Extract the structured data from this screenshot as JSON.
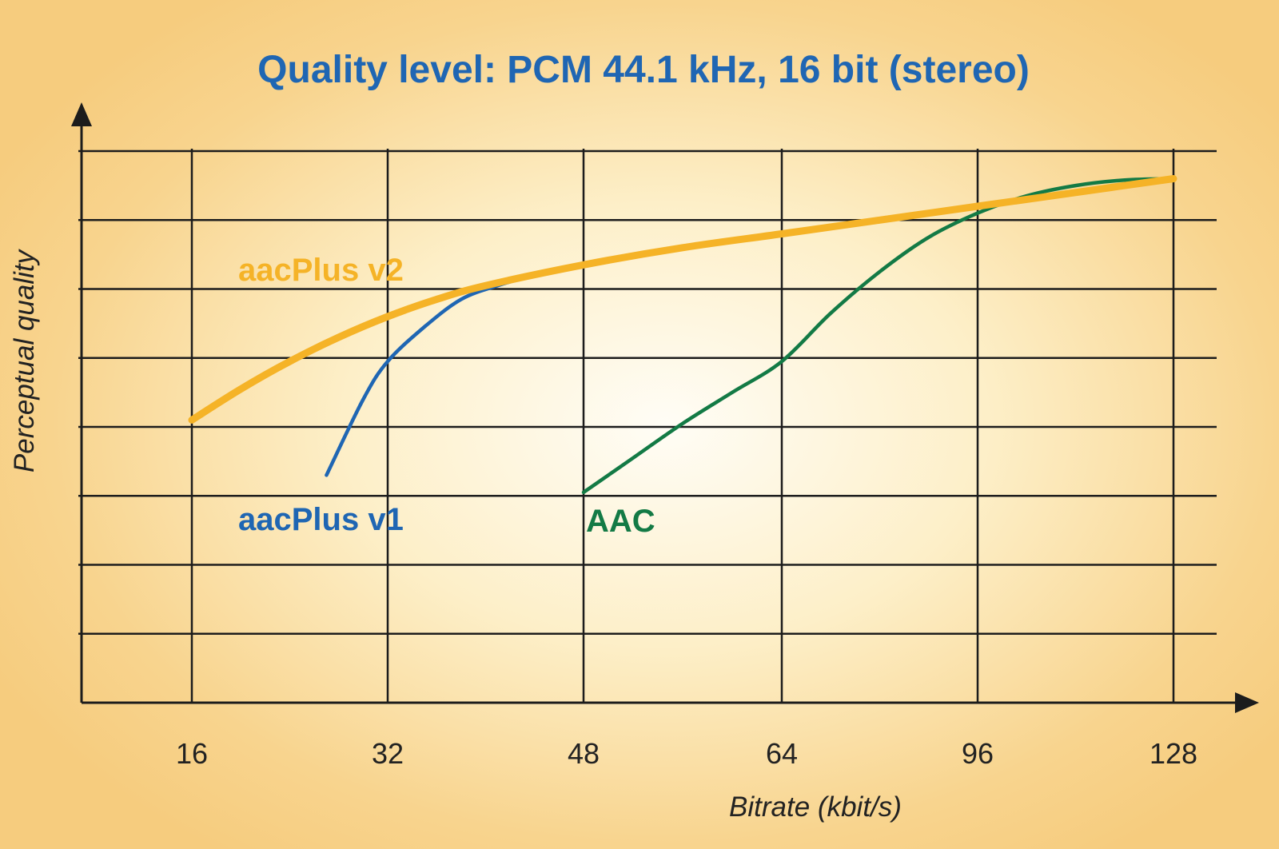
{
  "chart_data": {
    "type": "line",
    "title": "Quality level: PCM 44.1 kHz, 16 bit (stereo)",
    "xlabel": "Bitrate (kbit/s)",
    "ylabel": "Perceptual quality",
    "x_categories": [
      "16",
      "32",
      "48",
      "64",
      "96",
      "128"
    ],
    "ylim": [
      0,
      8
    ],
    "grid": true,
    "colors": {
      "title": "#1f66b3",
      "aacplus_v2": "#f5b327",
      "aacplus_v1": "#1f66b3",
      "aac": "#137a45",
      "grid": "#1c1c1c"
    },
    "series": [
      {
        "name": "aacPlus v2",
        "x": [
          16,
          20,
          24,
          28,
          32,
          36,
          40,
          48,
          56,
          64,
          80,
          96,
          112,
          128
        ],
        "y": [
          4.1,
          4.55,
          4.95,
          5.3,
          5.6,
          5.85,
          6.05,
          6.35,
          6.6,
          6.8,
          7.0,
          7.2,
          7.4,
          7.6
        ]
      },
      {
        "name": "aacPlus v1",
        "x": [
          27,
          30,
          32,
          35,
          38,
          41,
          44,
          48,
          52
        ],
        "y": [
          3.3,
          4.4,
          4.95,
          5.45,
          5.85,
          6.05,
          6.2,
          6.35,
          6.48
        ]
      },
      {
        "name": "AAC",
        "x": [
          48,
          52,
          56,
          60,
          64,
          72,
          80,
          88,
          96,
          104,
          112,
          120,
          128
        ],
        "y": [
          3.05,
          3.55,
          4.05,
          4.5,
          4.95,
          5.65,
          6.25,
          6.75,
          7.1,
          7.35,
          7.5,
          7.58,
          7.6
        ]
      }
    ]
  }
}
